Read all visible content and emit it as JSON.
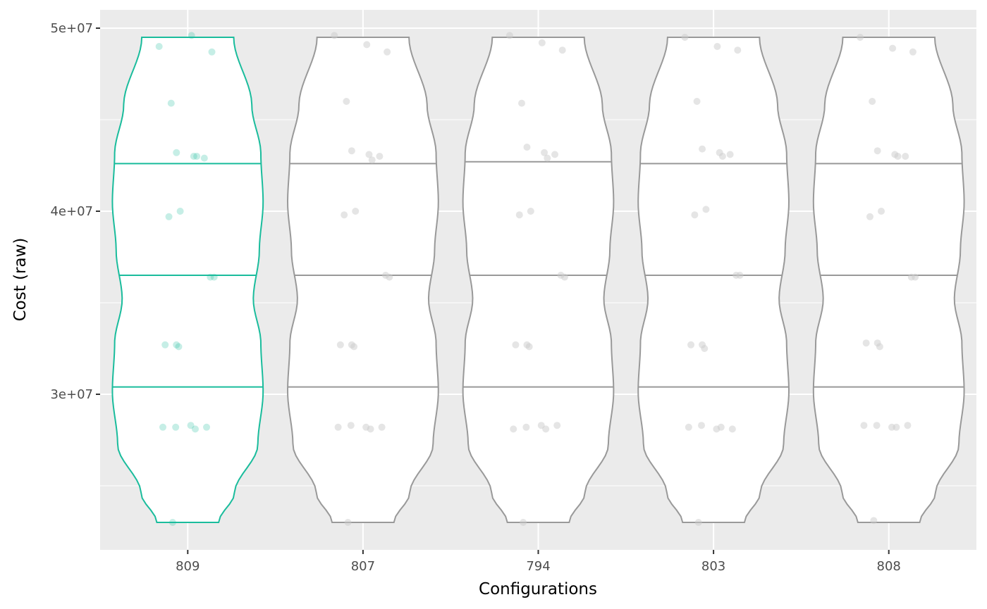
{
  "chart_data": {
    "type": "violin",
    "xlabel": "Configurations",
    "ylabel": "Cost (raw)",
    "categories": [
      "809",
      "807",
      "794",
      "803",
      "808"
    ],
    "highlight_category": "809",
    "ylim": [
      21500000,
      51000000
    ],
    "y_ticks": [
      30000000,
      40000000,
      50000000
    ],
    "y_tick_labels": [
      "3e+07",
      "4e+07",
      "5e+07"
    ],
    "grid": true,
    "colors": {
      "panel_background": "#ebebeb",
      "grid_line": "#ffffff",
      "highlight": "#1abc9c",
      "default_outline": "#999999",
      "default_point": "#cccccc"
    },
    "series": [
      {
        "category": "809",
        "range": [
          23000000,
          49500000
        ],
        "quartiles": [
          30400000,
          36500000,
          42600000
        ],
        "points": [
          49000000,
          49600000,
          48700000,
          45900000,
          43200000,
          43000000,
          42900000,
          43000000,
          40000000,
          39700000,
          36400000,
          36400000,
          32700000,
          32700000,
          32600000,
          28200000,
          28200000,
          28300000,
          28100000,
          28200000,
          23000000
        ]
      },
      {
        "category": "807",
        "range": [
          23000000,
          49500000
        ],
        "quartiles": [
          30400000,
          36500000,
          42600000
        ],
        "points": [
          49600000,
          49100000,
          48700000,
          46000000,
          43300000,
          43100000,
          43000000,
          42800000,
          40000000,
          39800000,
          36500000,
          36400000,
          32700000,
          32700000,
          32600000,
          28200000,
          28300000,
          28200000,
          28100000,
          28200000,
          23000000
        ]
      },
      {
        "category": "794",
        "range": [
          23000000,
          49500000
        ],
        "quartiles": [
          30400000,
          36500000,
          42700000
        ],
        "points": [
          49600000,
          49200000,
          48800000,
          45900000,
          43500000,
          43200000,
          43100000,
          42900000,
          40000000,
          39800000,
          36500000,
          36400000,
          32700000,
          32700000,
          32600000,
          28100000,
          28200000,
          28300000,
          28100000,
          28300000,
          23000000
        ]
      },
      {
        "category": "803",
        "range": [
          23000000,
          49500000
        ],
        "quartiles": [
          30400000,
          36500000,
          42600000
        ],
        "points": [
          49500000,
          49000000,
          48800000,
          46000000,
          43400000,
          43200000,
          43100000,
          43000000,
          40100000,
          39800000,
          36500000,
          36500000,
          32700000,
          32700000,
          32500000,
          28200000,
          28300000,
          28100000,
          28200000,
          28100000,
          23000000
        ]
      },
      {
        "category": "808",
        "range": [
          23000000,
          49500000
        ],
        "quartiles": [
          30400000,
          36500000,
          42600000
        ],
        "points": [
          49500000,
          48900000,
          48700000,
          46000000,
          43300000,
          43100000,
          43000000,
          43000000,
          40000000,
          39700000,
          36400000,
          36400000,
          32800000,
          32800000,
          32600000,
          28300000,
          28300000,
          28200000,
          28200000,
          28300000,
          23100000
        ]
      }
    ]
  }
}
